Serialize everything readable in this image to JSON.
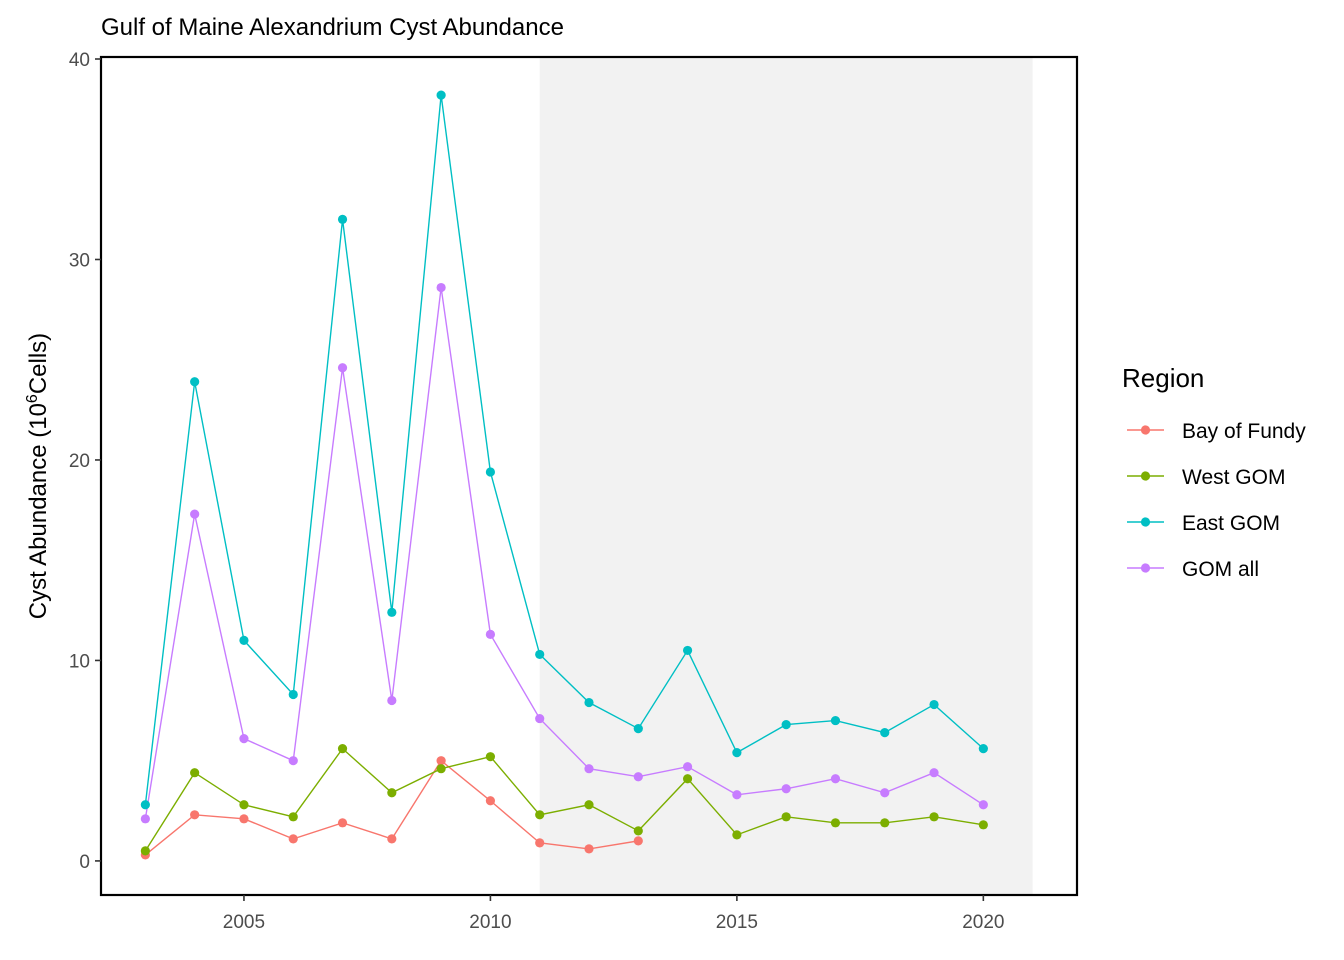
{
  "chart_data": {
    "type": "line",
    "title": "Gulf of Maine Alexandrium Cyst Abundance",
    "xlabel": "",
    "ylabel_main": "Cyst Abundance (10",
    "ylabel_sup": "6",
    "ylabel_tail": "Cells)",
    "xlim": [
      2002.1,
      2021.9
    ],
    "ylim": [
      -1.7,
      40.1
    ],
    "x_ticks": [
      2005,
      2010,
      2015,
      2020
    ],
    "x_tick_labels": [
      "2005",
      "2010",
      "2015",
      "2020"
    ],
    "y_ticks": [
      0,
      10,
      20,
      30,
      40
    ],
    "y_tick_labels": [
      "0",
      "10",
      "20",
      "30",
      "40"
    ],
    "shaded_region": {
      "x_start": 2011,
      "x_end": 2021,
      "color": "#f2f2f2"
    },
    "legend": {
      "title": "Region",
      "placement": "right"
    },
    "series": [
      {
        "name": "Bay of Fundy",
        "color": "#f8766d",
        "x": [
          2003,
          2004,
          2005,
          2006,
          2007,
          2008,
          2009,
          2010,
          2011,
          2012,
          2013
        ],
        "values": [
          0.3,
          2.3,
          2.1,
          1.1,
          1.9,
          1.1,
          5.0,
          3.0,
          0.9,
          0.6,
          1.0
        ]
      },
      {
        "name": "West GOM",
        "color": "#7cae00",
        "x": [
          2003,
          2004,
          2005,
          2006,
          2007,
          2008,
          2009,
          2010,
          2011,
          2012,
          2013,
          2014,
          2015,
          2016,
          2017,
          2018,
          2019,
          2020
        ],
        "values": [
          0.5,
          4.4,
          2.8,
          2.2,
          5.6,
          3.4,
          4.6,
          5.2,
          2.3,
          2.8,
          1.5,
          4.1,
          1.3,
          2.2,
          1.9,
          1.9,
          2.2,
          1.8
        ]
      },
      {
        "name": "East GOM",
        "color": "#00bfc4",
        "x": [
          2003,
          2004,
          2005,
          2006,
          2007,
          2008,
          2009,
          2010,
          2011,
          2012,
          2013,
          2014,
          2015,
          2016,
          2017,
          2018,
          2019,
          2020
        ],
        "values": [
          2.8,
          23.9,
          11.0,
          8.3,
          32.0,
          12.4,
          38.2,
          19.4,
          10.3,
          7.9,
          6.6,
          10.5,
          5.4,
          6.8,
          7.0,
          6.4,
          7.8,
          5.6
        ]
      },
      {
        "name": "GOM all",
        "color": "#c77cff",
        "x": [
          2003,
          2004,
          2005,
          2006,
          2007,
          2008,
          2009,
          2010,
          2011,
          2012,
          2013,
          2014,
          2015,
          2016,
          2017,
          2018,
          2019,
          2020
        ],
        "values": [
          2.1,
          17.3,
          6.1,
          5.0,
          24.6,
          8.0,
          28.6,
          11.3,
          7.1,
          4.6,
          4.2,
          4.7,
          3.3,
          3.6,
          4.1,
          3.4,
          4.4,
          2.8
        ]
      }
    ]
  }
}
